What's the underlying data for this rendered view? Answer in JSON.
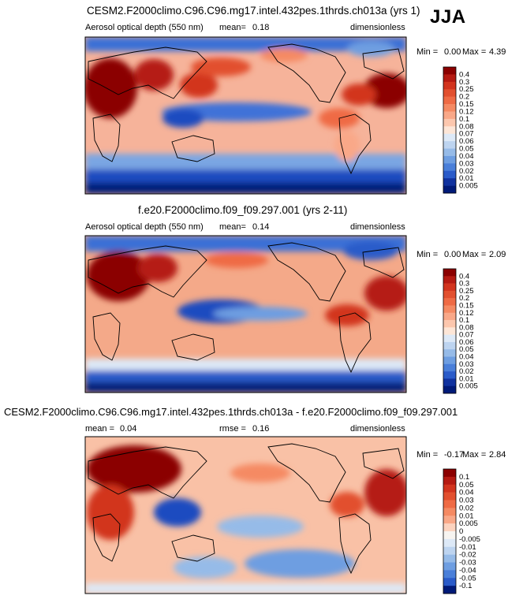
{
  "figure": {
    "season": "JJA"
  },
  "chart_data": [
    {
      "type": "heatmap",
      "id": "panel1",
      "title": "CESM2.F2000climo.C96.C96.mg17.intel.432pes.1thrds.ch013a (yrs 1)",
      "variable": "Aerosol optical depth (550 nm)",
      "mean_label": "mean=",
      "mean_value": "0.18",
      "units": "dimensionless",
      "min_label": "Min =",
      "min_value": "0.00",
      "max_label": "Max =",
      "max_value": "4.39",
      "levels": [
        "0.4",
        "0.3",
        "0.25",
        "0.2",
        "0.15",
        "0.12",
        "0.1",
        "0.08",
        "0.07",
        "0.06",
        "0.05",
        "0.04",
        "0.03",
        "0.02",
        "0.01",
        "0.005"
      ],
      "colors": [
        "#8b0000",
        "#b51a12",
        "#d2341e",
        "#e2502f",
        "#ef6b45",
        "#f58a63",
        "#f9a888",
        "#fcc7ae",
        "#fde6d7",
        "#dde9f7",
        "#bdd4f0",
        "#96bbe8",
        "#6e9ee1",
        "#4a7fd9",
        "#2a5bc9",
        "#10329f",
        "#001a78"
      ]
    },
    {
      "type": "heatmap",
      "id": "panel2",
      "title": "f.e20.F2000climo.f09_f09.297.001 (yrs 2-11)",
      "variable": "Aerosol optical depth (550 nm)",
      "mean_label": "mean=",
      "mean_value": "0.14",
      "units": "dimensionless",
      "min_label": "Min =",
      "min_value": "0.00",
      "max_label": "Max =",
      "max_value": "2.09",
      "levels": [
        "0.4",
        "0.3",
        "0.25",
        "0.2",
        "0.15",
        "0.12",
        "0.1",
        "0.08",
        "0.07",
        "0.06",
        "0.05",
        "0.04",
        "0.03",
        "0.02",
        "0.01",
        "0.005"
      ],
      "colors": [
        "#8b0000",
        "#b51a12",
        "#d2341e",
        "#e2502f",
        "#ef6b45",
        "#f58a63",
        "#f9a888",
        "#fcc7ae",
        "#fde6d7",
        "#dde9f7",
        "#bdd4f0",
        "#96bbe8",
        "#6e9ee1",
        "#4a7fd9",
        "#2a5bc9",
        "#10329f",
        "#001a78"
      ]
    },
    {
      "type": "heatmap",
      "id": "panel3",
      "title": "CESM2.F2000climo.C96.C96.mg17.intel.432pes.1thrds.ch013a - f.e20.F2000climo.f09_f09.297.001",
      "mean_label": "mean =",
      "mean_value": "0.04",
      "rmse_label": "rmse =",
      "rmse_value": "0.16",
      "units": "dimensionless",
      "min_label": "Min =",
      "min_value": "-0.17",
      "max_label": "Max =",
      "max_value": "2.84",
      "levels": [
        "0.1",
        "0.05",
        "0.04",
        "0.03",
        "0.02",
        "0.01",
        "0.005",
        "0",
        "-0.005",
        "-0.01",
        "-0.02",
        "-0.03",
        "-0.04",
        "-0.05",
        "-0.1"
      ],
      "colors": [
        "#8b0000",
        "#b51a12",
        "#d2341e",
        "#e2502f",
        "#ef6b45",
        "#f58a63",
        "#f9a888",
        "#fcd3bf",
        "#f7f4f0",
        "#dde9f7",
        "#bdd4f0",
        "#96bbe8",
        "#6e9ee1",
        "#4a7fd9",
        "#2a5bc9",
        "#001a78"
      ]
    }
  ]
}
